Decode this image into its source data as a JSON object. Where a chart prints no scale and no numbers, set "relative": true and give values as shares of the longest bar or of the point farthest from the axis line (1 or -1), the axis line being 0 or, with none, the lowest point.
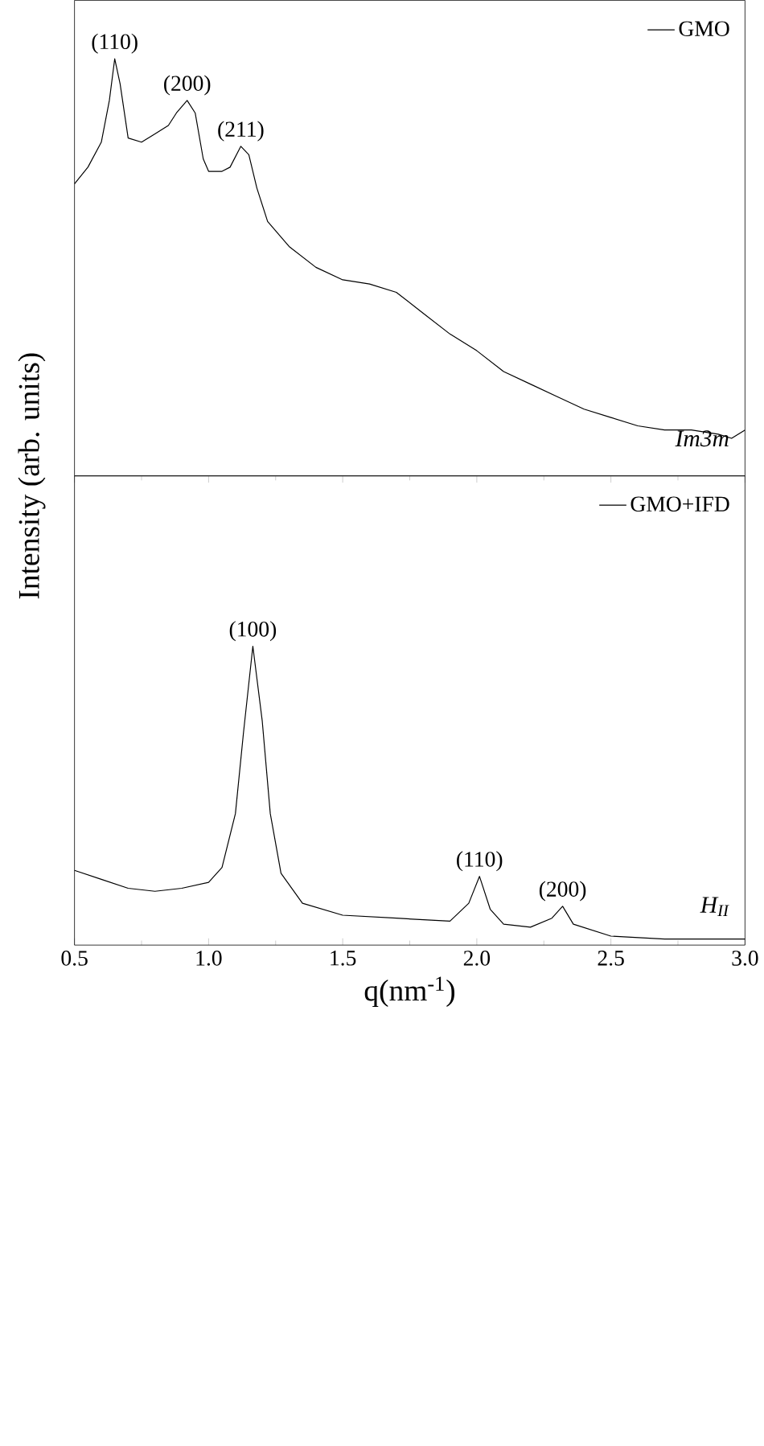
{
  "chart_data": [
    {
      "type": "line",
      "relative": true,
      "tick_labels": false,
      "legend": "top right",
      "ylabel": "Intensity (arb. units)",
      "xlim": [
        0.5,
        3.0
      ],
      "series": [
        {
          "name": "GMO",
          "color": "#000000",
          "x": [
            0.5,
            0.55,
            0.6,
            0.63,
            0.65,
            0.67,
            0.7,
            0.75,
            0.8,
            0.85,
            0.88,
            0.92,
            0.95,
            0.98,
            1.0,
            1.05,
            1.08,
            1.12,
            1.15,
            1.18,
            1.22,
            1.3,
            1.4,
            1.5,
            1.6,
            1.7,
            1.8,
            1.9,
            2.0,
            2.1,
            2.2,
            2.3,
            2.4,
            2.5,
            2.6,
            2.7,
            2.8,
            2.9,
            2.95,
            3.0
          ],
          "values": [
            0.7,
            0.74,
            0.8,
            0.9,
            1,
            0.94,
            0.81,
            0.8,
            0.82,
            0.84,
            0.87,
            0.9,
            0.87,
            0.76,
            0.73,
            0.73,
            0.74,
            0.79,
            0.77,
            0.69,
            0.61,
            0.55,
            0.5,
            0.47,
            0.46,
            0.44,
            0.39,
            0.34,
            0.3,
            0.25,
            0.22,
            0.19,
            0.16,
            0.14,
            0.12,
            0.11,
            0.11,
            0.1,
            0.09,
            0.11
          ]
        }
      ],
      "annotations": [
        {
          "text": "(110)",
          "x": 0.65,
          "y": 1
        },
        {
          "text": "(200)",
          "x": 0.92,
          "y": 0.9
        },
        {
          "text": "(211)",
          "x": 1.12,
          "y": 0.79
        },
        "Im3m"
      ]
    },
    {
      "type": "line",
      "relative": true,
      "tick_labels": "x",
      "legend": "top right",
      "xlabel": "q(nm$^{-1}$)",
      "xlim": [
        0.5,
        3.0
      ],
      "xticks": [
        {
          "value": 0.5,
          "label": "0.5"
        },
        {
          "value": 1.0,
          "label": "1.0"
        },
        {
          "value": 1.5,
          "label": "1.5"
        },
        {
          "value": 2.0,
          "label": "2.0"
        },
        {
          "value": 2.5,
          "label": "2.5"
        },
        {
          "value": 3.0,
          "label": "3.0"
        }
      ],
      "series": [
        {
          "name": "GMO+IFD",
          "color": "#000000",
          "x": [
            0.5,
            0.6,
            0.7,
            0.8,
            0.9,
            1.0,
            1.05,
            1.1,
            1.13,
            1.165,
            1.2,
            1.23,
            1.27,
            1.35,
            1.5,
            1.7,
            1.9,
            1.97,
            2.01,
            2.05,
            2.1,
            2.2,
            2.28,
            2.32,
            2.36,
            2.5,
            2.7,
            2.9,
            3.0
          ],
          "values": [
            0.25,
            0.22,
            0.19,
            0.18,
            0.19,
            0.21,
            0.26,
            0.44,
            0.71,
            1,
            0.75,
            0.44,
            0.24,
            0.14,
            0.1,
            0.09,
            0.08,
            0.14,
            0.23,
            0.12,
            0.07,
            0.06,
            0.09,
            0.13,
            0.07,
            0.03,
            0.02,
            0.02,
            0.02
          ]
        }
      ],
      "annotations": [
        {
          "text": "(100)",
          "x": 1.165,
          "y": 1
        },
        {
          "text": "(110)",
          "x": 2.01,
          "y": 0.23
        },
        {
          "text": "(200)",
          "x": 2.32,
          "y": 0.13
        },
        "H$_{II}$"
      ]
    }
  ]
}
